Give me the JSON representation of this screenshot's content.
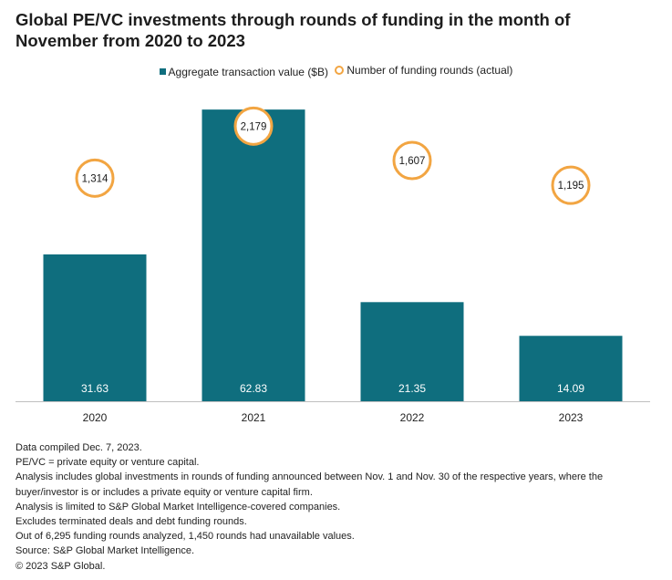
{
  "chart_data": {
    "type": "bar",
    "title": "Global PE/VC investments through rounds of funding in the month of November from 2020 to 2023",
    "categories": [
      "2020",
      "2021",
      "2022",
      "2023"
    ],
    "series": [
      {
        "name": "Aggregate transaction value ($B)",
        "kind": "bar",
        "values": [
          31.63,
          62.83,
          21.35,
          14.09
        ],
        "labels": [
          "31.63",
          "62.83",
          "21.35",
          "14.09"
        ]
      },
      {
        "name": "Number of funding rounds (actual)",
        "kind": "marker",
        "values": [
          1314,
          2179,
          1607,
          1195
        ],
        "labels": [
          "1,314",
          "2,179",
          "1,607",
          "1,195"
        ]
      }
    ],
    "bar_ylim": [
      0,
      66
    ],
    "marker_ylim": [
      -2400,
      2700
    ],
    "xlabel": "",
    "ylabel": "",
    "legend": "top-center",
    "grid": false
  },
  "colors": {
    "bar": "#0f6e7e",
    "marker_border": "#f2a542",
    "axis": "#bfbfbf",
    "bar_label": "#ffffff"
  },
  "notes": [
    "Data compiled Dec. 7, 2023.",
    "PE/VC = private equity or venture capital.",
    "Analysis includes global investments in rounds of funding announced between Nov. 1 and Nov. 30 of the respective years, where the buyer/investor is or includes a private equity or venture capital firm.",
    "Analysis is limited to S&P Global Market Intelligence-covered companies.",
    "Excludes terminated deals and debt funding rounds.",
    "Out of 6,295 funding rounds analyzed, 1,450 rounds had unavailable values.",
    "Source: S&P Global Market Intelligence.",
    "© 2023 S&P Global."
  ]
}
